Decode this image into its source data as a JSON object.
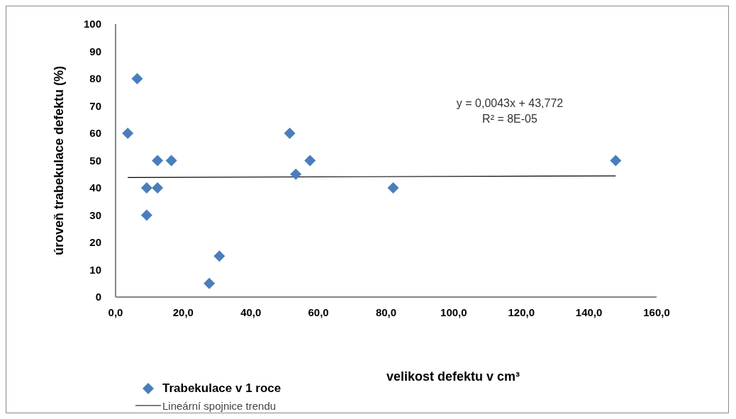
{
  "chart_data": {
    "type": "scatter",
    "xlabel": "velikost defektu v cm³",
    "ylabel": "úroveň trabekulace defektu (%)",
    "xlim": [
      0,
      160
    ],
    "xticks": [
      {
        "value": 0,
        "label": "0,0"
      },
      {
        "value": 20,
        "label": "20,0"
      },
      {
        "value": 40,
        "label": "40,0"
      },
      {
        "value": 60,
        "label": "60,0"
      },
      {
        "value": 80,
        "label": "80,0"
      },
      {
        "value": 100,
        "label": "100,0"
      },
      {
        "value": 120,
        "label": "120,0"
      },
      {
        "value": 140,
        "label": "140,0"
      },
      {
        "value": 160,
        "label": "160,0"
      }
    ],
    "ylim": [
      0,
      100
    ],
    "yticks": [
      0,
      10,
      20,
      30,
      40,
      50,
      60,
      70,
      80,
      90,
      100
    ],
    "series": [
      {
        "name": "Trabekulace v 1 roce",
        "marker": "diamond",
        "color": "#4a7ebb",
        "x": [
          3.6,
          6.4,
          9.2,
          12.4,
          9.2,
          12.4,
          16.5,
          27.7,
          30.7,
          51.5,
          53.3,
          57.5,
          82.1,
          147.9
        ],
        "values": [
          60,
          80,
          40,
          40,
          30,
          50,
          50,
          5,
          15,
          60,
          45,
          50,
          40,
          50
        ]
      },
      {
        "name": "Lineární spojnice trendu",
        "type": "line",
        "color": "#000000",
        "x": [
          3.6,
          147.9
        ],
        "values": [
          43.8,
          44.4
        ]
      }
    ],
    "legend": "bottom left",
    "annotations": [
      "y = 0,0043x + 43,772",
      "R² = 8E-05"
    ]
  }
}
